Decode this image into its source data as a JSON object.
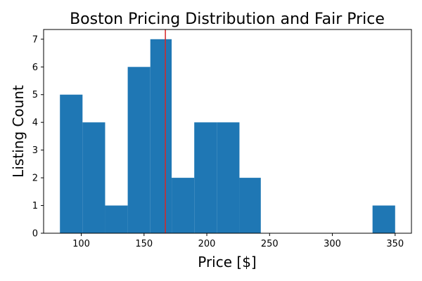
{
  "chart_data": {
    "type": "histogram",
    "title": "Boston Pricing Distribution and Fair Price",
    "xlabel": "Price [$]",
    "ylabel": "Listing Count",
    "xlim": [
      70,
      363
    ],
    "ylim": [
      0,
      7.35
    ],
    "x_ticks": [
      100,
      150,
      200,
      250,
      300,
      350
    ],
    "y_ticks": [
      0,
      1,
      2,
      3,
      4,
      5,
      6,
      7
    ],
    "bins": [
      {
        "start": 83,
        "end": 101,
        "count": 5
      },
      {
        "start": 101,
        "end": 119,
        "count": 4
      },
      {
        "start": 119,
        "end": 137,
        "count": 1
      },
      {
        "start": 137,
        "end": 155,
        "count": 6
      },
      {
        "start": 155,
        "end": 172,
        "count": 7
      },
      {
        "start": 172,
        "end": 190,
        "count": 2
      },
      {
        "start": 190,
        "end": 208,
        "count": 4
      },
      {
        "start": 208,
        "end": 226,
        "count": 4
      },
      {
        "start": 226,
        "end": 243,
        "count": 2
      },
      {
        "start": 243,
        "end": 261,
        "count": 0
      },
      {
        "start": 261,
        "end": 279,
        "count": 0
      },
      {
        "start": 279,
        "end": 297,
        "count": 0
      },
      {
        "start": 297,
        "end": 314,
        "count": 0
      },
      {
        "start": 314,
        "end": 332,
        "count": 0
      },
      {
        "start": 332,
        "end": 350,
        "count": 1
      }
    ],
    "fair_price": 167,
    "bar_color": "#1f77b4",
    "fair_price_color": "#d62728",
    "grid": false,
    "legend": "none"
  }
}
